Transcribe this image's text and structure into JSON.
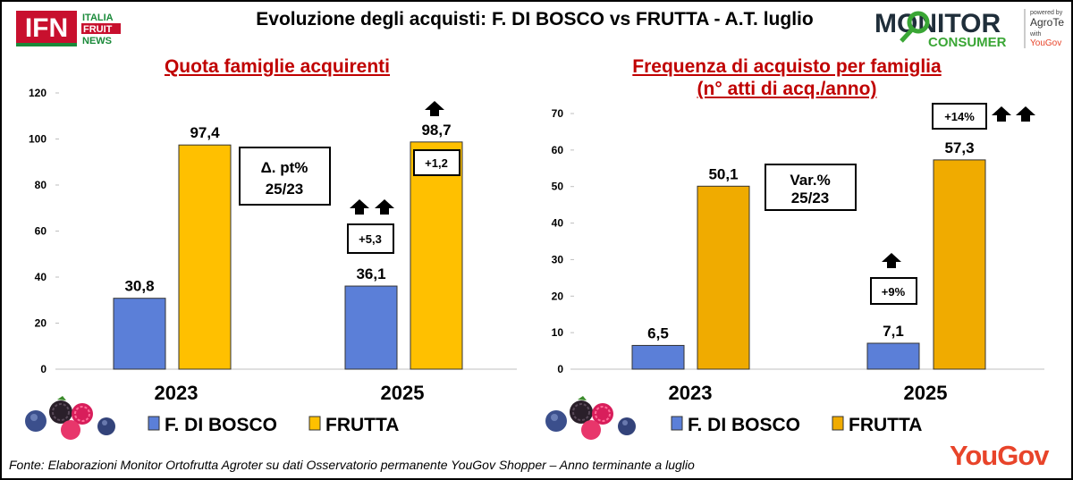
{
  "header": {
    "title": "Evoluzione degli acquisti: F. DI BOSCO vs FRUTTA  - A.T. luglio",
    "ifn_logo_text": "IFN",
    "ifn_logo_lines": [
      "ITALIA",
      "FRUIT",
      "NEWS"
    ],
    "mc_logo_main": "MONITOR",
    "mc_logo_sub": "CONSUMER",
    "mc_powered": "powered by",
    "mc_agroter": "AgroTer",
    "mc_with": "with",
    "mc_yougov": "YouGov"
  },
  "colors": {
    "bosco": "#5b7fd8",
    "frutta_left": "#ffc000",
    "frutta_right": "#f0ab00",
    "title_red": "#c00000",
    "yougov_red": "#e8442a"
  },
  "chart_data": [
    {
      "type": "bar",
      "title": "Quota famiglie acquirenti",
      "categories": [
        "2023",
        "2025"
      ],
      "series": [
        {
          "name": "F. DI BOSCO",
          "values": [
            30.8,
            36.1
          ]
        },
        {
          "name": "FRUTTA",
          "values": [
            97.4,
            98.7
          ]
        }
      ],
      "value_labels": [
        [
          "30,8",
          "36,1"
        ],
        [
          "97,4",
          "98,7"
        ]
      ],
      "ylim": [
        0,
        120
      ],
      "yticks": [
        "0",
        "20",
        "40",
        "60",
        "80",
        "100",
        "120"
      ],
      "grid": false,
      "legend": "bottom",
      "annotation_box": [
        "Δ. pt%",
        "25/23"
      ],
      "changes": {
        "bosco": "+5,3",
        "frutta": "+1,2"
      },
      "change_arrows": {
        "bosco": 2,
        "frutta": 1
      }
    },
    {
      "type": "bar",
      "title": "Frequenza di acquisto per famiglia",
      "subtitle": "(n° atti di acq./anno)",
      "categories": [
        "2023",
        "2025"
      ],
      "series": [
        {
          "name": "F. DI BOSCO",
          "values": [
            6.5,
            7.1
          ]
        },
        {
          "name": "FRUTTA",
          "values": [
            50.1,
            57.3
          ]
        }
      ],
      "value_labels": [
        [
          "6,5",
          "7,1"
        ],
        [
          "50,1",
          "57,3"
        ]
      ],
      "ylim": [
        0,
        70
      ],
      "yticks": [
        "0",
        "10",
        "20",
        "30",
        "40",
        "50",
        "60",
        "70"
      ],
      "grid": false,
      "legend": "bottom",
      "annotation_box": [
        "Var.%",
        "25/23"
      ],
      "changes": {
        "bosco": "+9%",
        "frutta": "+14%"
      },
      "change_arrows": {
        "bosco": 1,
        "frutta": 2
      }
    }
  ],
  "footer": {
    "source": "Fonte: Elaborazioni Monitor Ortofrutta Agroter su dati Osservatorio permanente YouGov Shopper  – Anno terminante a luglio",
    "brand": "YouGov"
  }
}
